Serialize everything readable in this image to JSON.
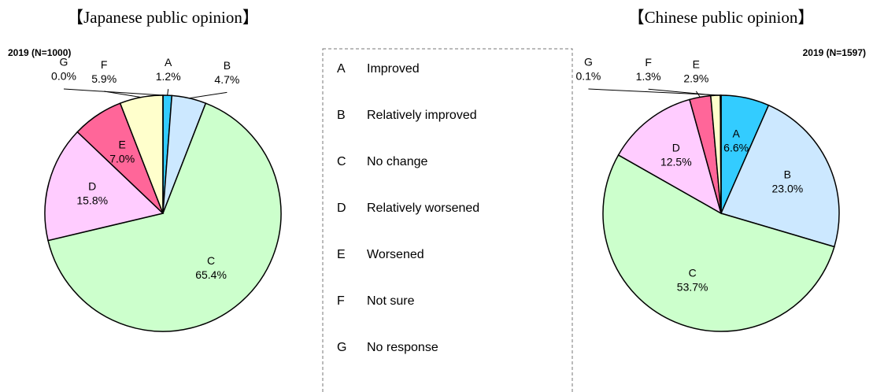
{
  "chart_data": [
    {
      "type": "pie",
      "title": "【Japanese public opinion】",
      "subtitle": "2019 (N=1000)",
      "categories": [
        "A",
        "B",
        "C",
        "D",
        "E",
        "F",
        "G"
      ],
      "values": [
        1.2,
        4.7,
        65.4,
        15.8,
        7.0,
        5.9,
        0.0
      ],
      "value_labels": [
        "1.2%",
        "4.7%",
        "65.4%",
        "15.8%",
        "7.0%",
        "5.9%",
        "0.0%"
      ],
      "colors": [
        "#33ccff",
        "#cce8ff",
        "#ccffcc",
        "#ffccff",
        "#ff6699",
        "#ffffcc",
        "#ccffff"
      ]
    },
    {
      "type": "pie",
      "title": "【Chinese public opinion】",
      "subtitle": "2019 (N=1597)",
      "categories": [
        "A",
        "B",
        "C",
        "D",
        "E",
        "F",
        "G"
      ],
      "values": [
        6.6,
        23.0,
        53.7,
        12.5,
        2.9,
        1.3,
        0.1
      ],
      "value_labels": [
        "6.6%",
        "23.0%",
        "53.7%",
        "12.5%",
        "2.9%",
        "1.3%",
        "0.1%"
      ],
      "colors": [
        "#33ccff",
        "#cce8ff",
        "#ccffcc",
        "#ffccff",
        "#ff6699",
        "#ffffcc",
        "#ccffff"
      ]
    }
  ],
  "legend": {
    "items": [
      "Improved",
      "Relatively improved",
      "No change",
      "Relatively worsened",
      "Worsened",
      "Not sure",
      "No response"
    ]
  }
}
